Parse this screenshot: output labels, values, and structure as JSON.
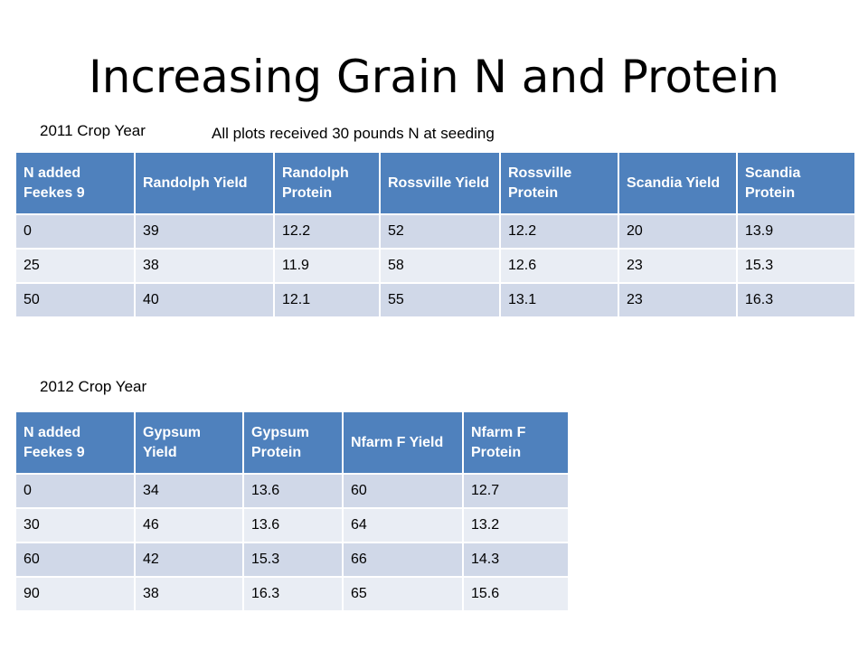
{
  "title": "Increasing Grain N and Protein",
  "year2011": {
    "caption": "2011 Crop Year",
    "note": "All plots received 30 pounds N at seeding",
    "headers": [
      "N added Feekes 9",
      "Randolph Yield",
      "Randolph Protein",
      "Rossville Yield",
      "Rossville Protein",
      "Scandia Yield",
      "Scandia Protein"
    ],
    "rows": [
      [
        "0",
        "39",
        "12.2",
        "52",
        "12.2",
        "20",
        "13.9"
      ],
      [
        "25",
        "38",
        "11.9",
        "58",
        "12.6",
        "23",
        "15.3"
      ],
      [
        "50",
        "40",
        "12.1",
        "55",
        "13.1",
        "23",
        "16.3"
      ]
    ]
  },
  "year2012": {
    "caption": "2012 Crop Year",
    "headers": [
      "N added Feekes 9",
      "Gypsum Yield",
      "Gypsum Protein",
      "Nfarm F Yield",
      "Nfarm F Protein"
    ],
    "rows": [
      [
        "0",
        "34",
        "13.6",
        "60",
        "12.7"
      ],
      [
        "30",
        "46",
        "13.6",
        "64",
        "13.2"
      ],
      [
        "60",
        "42",
        "15.3",
        "66",
        "14.3"
      ],
      [
        "90",
        "38",
        "16.3",
        "65",
        "15.6"
      ]
    ]
  },
  "colors": {
    "header_bg": "#4f81bd",
    "row_odd": "#d0d8e8",
    "row_even": "#e9edf4"
  }
}
